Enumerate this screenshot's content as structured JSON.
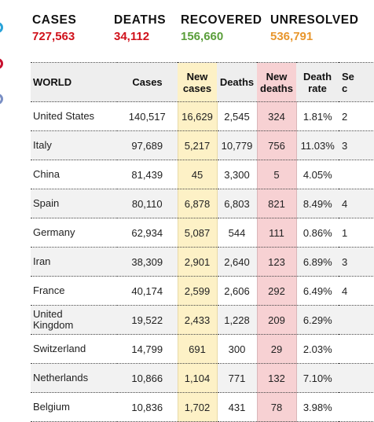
{
  "summary": {
    "cases": {
      "label": "CASES",
      "value": "727,563",
      "color": "#d0111b"
    },
    "deaths": {
      "label": "DEATHS",
      "value": "34,112",
      "color": "#d0111b"
    },
    "recovered": {
      "label": "RECOVERED",
      "value": "156,660",
      "color": "#5a9e3a"
    },
    "unresolved": {
      "label": "UNRESOLVED",
      "value": "536,791",
      "color": "#e8962c"
    }
  },
  "table": {
    "headers": {
      "country": "WORLD",
      "cases": "Cases",
      "new_cases_1": "New",
      "new_cases_2": "cases",
      "deaths": "Deaths",
      "new_deaths_1": "New",
      "new_deaths_2": "deaths",
      "death_rate_1": "Death",
      "death_rate_2": "rate",
      "cut_1": "Se",
      "cut_2": "c"
    },
    "rows": [
      {
        "country": "United States",
        "cases": "140,517",
        "new_cases": "16,629",
        "deaths": "2,545",
        "new_deaths": "324",
        "death_rate": "1.81%",
        "cut": "2"
      },
      {
        "country": "Italy",
        "cases": "97,689",
        "new_cases": "5,217",
        "deaths": "10,779",
        "new_deaths": "756",
        "death_rate": "11.03%",
        "cut": "3"
      },
      {
        "country": "China",
        "cases": "81,439",
        "new_cases": "45",
        "deaths": "3,300",
        "new_deaths": "5",
        "death_rate": "4.05%",
        "cut": ""
      },
      {
        "country": "Spain",
        "cases": "80,110",
        "new_cases": "6,878",
        "deaths": "6,803",
        "new_deaths": "821",
        "death_rate": "8.49%",
        "cut": "4"
      },
      {
        "country": "Germany",
        "cases": "62,934",
        "new_cases": "5,087",
        "deaths": "544",
        "new_deaths": "111",
        "death_rate": "0.86%",
        "cut": "1"
      },
      {
        "country": "Iran",
        "cases": "38,309",
        "new_cases": "2,901",
        "deaths": "2,640",
        "new_deaths": "123",
        "death_rate": "6.89%",
        "cut": "3"
      },
      {
        "country": "France",
        "cases": "40,174",
        "new_cases": "2,599",
        "deaths": "2,606",
        "new_deaths": "292",
        "death_rate": "6.49%",
        "cut": "4"
      },
      {
        "country_1": "United",
        "country_2": "Kingdom",
        "cases": "19,522",
        "new_cases": "2,433",
        "deaths": "1,228",
        "new_deaths": "209",
        "death_rate": "6.29%",
        "cut": ""
      },
      {
        "country": "Switzerland",
        "cases": "14,799",
        "new_cases": "691",
        "deaths": "300",
        "new_deaths": "29",
        "death_rate": "2.03%",
        "cut": ""
      },
      {
        "country": "Netherlands",
        "cases": "10,866",
        "new_cases": "1,104",
        "deaths": "771",
        "new_deaths": "132",
        "death_rate": "7.10%",
        "cut": ""
      },
      {
        "country": "Belgium",
        "cases": "10,836",
        "new_cases": "1,702",
        "deaths": "431",
        "new_deaths": "78",
        "death_rate": "3.98%",
        "cut": ""
      }
    ]
  },
  "edge_icons": [
    {
      "icon": "share-icon",
      "color": "#2aa3d8"
    },
    {
      "icon": "share-icon",
      "color": "#c8102e"
    },
    {
      "icon": "share-icon",
      "color": "#7a8fc4"
    }
  ]
}
